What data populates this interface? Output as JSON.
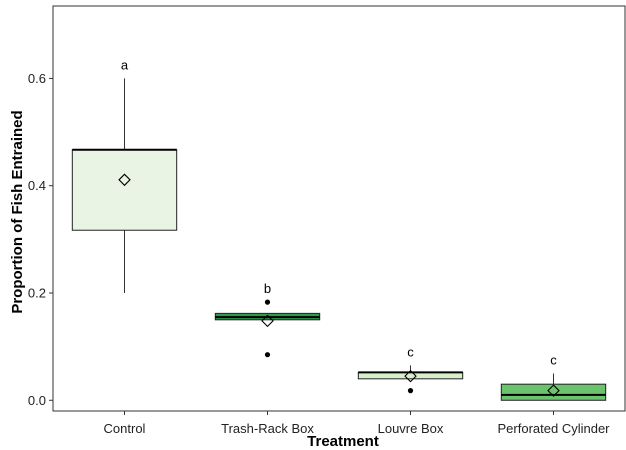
{
  "chart_data": {
    "type": "boxplot",
    "xlabel": "Treatment",
    "ylabel": "Proportion of Fish Entrained",
    "ylim": [
      -0.02,
      0.735
    ],
    "yticks": [
      0.0,
      0.2,
      0.4,
      0.6
    ],
    "ytick_labels": [
      "0.0",
      "0.2",
      "0.4",
      "0.6"
    ],
    "grid": false,
    "categories": [
      "Control",
      "Trash-Rack Box",
      "Louvre Box",
      "Perforated Cylinder"
    ],
    "groups": [
      {
        "name": "Control",
        "whisker_low": 0.2,
        "q1": 0.317,
        "median": 0.467,
        "q3": 0.467,
        "whisker_high": 0.6,
        "mean": 0.411,
        "outliers": [],
        "letter": "a",
        "color": "#eaf4e4"
      },
      {
        "name": "Trash-Rack Box",
        "whisker_low": 0.15,
        "q1": 0.15,
        "median": 0.155,
        "q3": 0.162,
        "whisker_high": 0.162,
        "mean": 0.148,
        "outliers": [
          0.183,
          0.085
        ],
        "letter": "b",
        "color": "#2f9a4d"
      },
      {
        "name": "Louvre Box",
        "whisker_low": 0.04,
        "q1": 0.04,
        "median": 0.052,
        "q3": 0.052,
        "whisker_high": 0.065,
        "mean": 0.045,
        "outliers": [
          0.018
        ],
        "letter": "c",
        "color": "#d7efcb"
      },
      {
        "name": "Perforated Cylinder",
        "whisker_low": 0.0,
        "q1": 0.0,
        "median": 0.01,
        "q3": 0.03,
        "whisker_high": 0.05,
        "mean": 0.018,
        "outliers": [],
        "letter": "c",
        "color": "#6cc36e"
      }
    ]
  }
}
